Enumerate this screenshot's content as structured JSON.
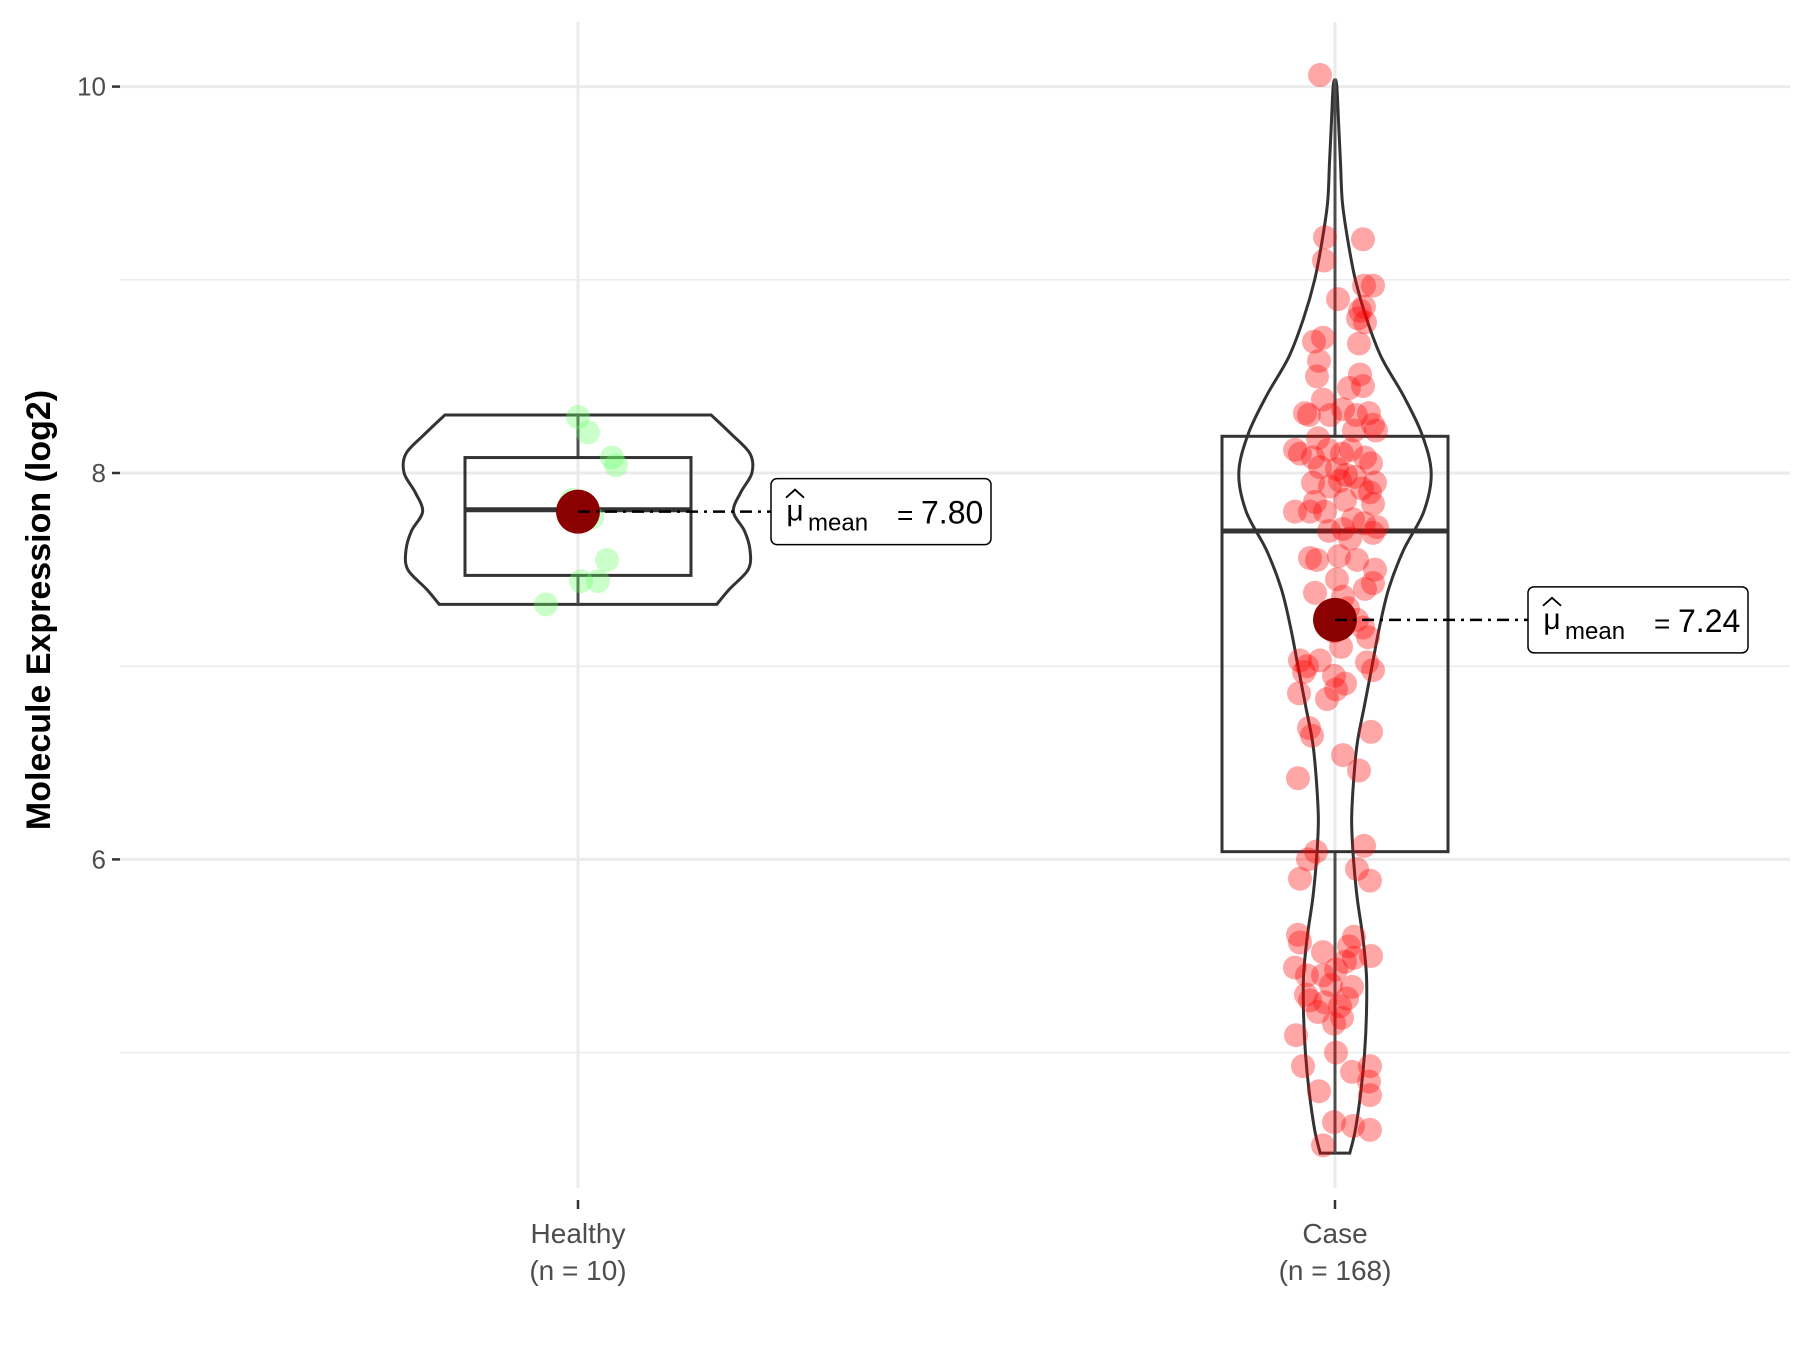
{
  "chart_data": {
    "type": "violin-box-jitter",
    "title": "",
    "xlabel": "",
    "ylabel": "Molecule Expression (log2)",
    "ylim": [
      4.2,
      10.4
    ],
    "yticks": [
      6,
      8,
      10
    ],
    "yticks_minor": [
      5,
      7,
      9
    ],
    "grid": true,
    "categories": [
      {
        "name": "Healthy",
        "n_label": "(n = 10)",
        "color": "#66ff66",
        "mean": 7.8,
        "mean_label": "7.80",
        "box": {
          "q1": 7.47,
          "median": 7.81,
          "q3": 8.08,
          "whisker_low": 7.32,
          "whisker_high": 8.3
        },
        "violin": {
          "min": 7.32,
          "max": 8.3,
          "profile": [
            [
              7.32,
              0.75
            ],
            [
              7.4,
              0.82
            ],
            [
              7.5,
              0.92
            ],
            [
              7.6,
              0.93
            ],
            [
              7.7,
              0.9
            ],
            [
              7.8,
              0.84
            ],
            [
              7.9,
              0.88
            ],
            [
              8.0,
              0.94
            ],
            [
              8.1,
              0.93
            ],
            [
              8.2,
              0.83
            ],
            [
              8.3,
              0.72
            ]
          ]
        },
        "points": [
          {
            "dx": 0.0,
            "y": 8.29
          },
          {
            "dx": 0.1,
            "y": 8.21
          },
          {
            "dx": 0.34,
            "y": 8.08
          },
          {
            "dx": 0.38,
            "y": 8.04
          },
          {
            "dx": -0.06,
            "y": 7.86
          },
          {
            "dx": 0.14,
            "y": 7.77
          },
          {
            "dx": 0.29,
            "y": 7.55
          },
          {
            "dx": 0.2,
            "y": 7.44
          },
          {
            "dx": 0.03,
            "y": 7.44
          },
          {
            "dx": -0.32,
            "y": 7.32
          }
        ]
      },
      {
        "name": "Case",
        "n_label": "(n = 168)",
        "color": "#ff0000",
        "mean": 7.24,
        "mean_label": "7.24",
        "box": {
          "q1": 6.04,
          "median": 7.7,
          "q3": 8.19,
          "whisker_low": 4.48,
          "whisker_high": 10.04
        },
        "violin": {
          "min": 4.48,
          "max": 10.04,
          "profile": [
            [
              4.48,
              0.08
            ],
            [
              4.6,
              0.11
            ],
            [
              4.8,
              0.14
            ],
            [
              5.0,
              0.16
            ],
            [
              5.2,
              0.17
            ],
            [
              5.4,
              0.17
            ],
            [
              5.6,
              0.15
            ],
            [
              5.8,
              0.12
            ],
            [
              6.0,
              0.1
            ],
            [
              6.2,
              0.09
            ],
            [
              6.4,
              0.1
            ],
            [
              6.6,
              0.12
            ],
            [
              6.8,
              0.16
            ],
            [
              7.0,
              0.2
            ],
            [
              7.2,
              0.24
            ],
            [
              7.4,
              0.29
            ],
            [
              7.6,
              0.37
            ],
            [
              7.8,
              0.48
            ],
            [
              8.0,
              0.52
            ],
            [
              8.2,
              0.47
            ],
            [
              8.4,
              0.37
            ],
            [
              8.6,
              0.25
            ],
            [
              8.8,
              0.17
            ],
            [
              9.0,
              0.11
            ],
            [
              9.2,
              0.07
            ],
            [
              9.4,
              0.04
            ],
            [
              9.6,
              0.03
            ],
            [
              9.8,
              0.02
            ],
            [
              10.0,
              0.01
            ],
            [
              10.04,
              0.0
            ]
          ]
        },
        "points": [
          {
            "dx": -0.15,
            "y": 10.06
          },
          {
            "dx": -0.1,
            "y": 9.22
          },
          {
            "dx": -0.11,
            "y": 9.1
          },
          {
            "dx": 0.28,
            "y": 9.21
          },
          {
            "dx": 0.29,
            "y": 8.97
          },
          {
            "dx": 0.38,
            "y": 8.97
          },
          {
            "dx": 0.03,
            "y": 8.9
          },
          {
            "dx": 0.23,
            "y": 8.8
          },
          {
            "dx": 0.25,
            "y": 8.84
          },
          {
            "dx": 0.29,
            "y": 8.86
          },
          {
            "dx": 0.3,
            "y": 8.78
          },
          {
            "dx": -0.21,
            "y": 8.68
          },
          {
            "dx": -0.12,
            "y": 8.7
          },
          {
            "dx": 0.24,
            "y": 8.67
          },
          {
            "dx": -0.16,
            "y": 8.58
          },
          {
            "dx": -0.18,
            "y": 8.5
          },
          {
            "dx": 0.25,
            "y": 8.51
          },
          {
            "dx": 0.28,
            "y": 8.45
          },
          {
            "dx": 0.14,
            "y": 8.44
          },
          {
            "dx": -0.12,
            "y": 8.38
          },
          {
            "dx": -0.3,
            "y": 8.31
          },
          {
            "dx": -0.26,
            "y": 8.3
          },
          {
            "dx": -0.05,
            "y": 8.3
          },
          {
            "dx": 0.08,
            "y": 8.33
          },
          {
            "dx": 0.21,
            "y": 8.3
          },
          {
            "dx": 0.34,
            "y": 8.31
          },
          {
            "dx": 0.38,
            "y": 8.25
          },
          {
            "dx": 0.41,
            "y": 8.22
          },
          {
            "dx": 0.19,
            "y": 8.22
          },
          {
            "dx": -0.17,
            "y": 8.18
          },
          {
            "dx": -0.4,
            "y": 8.12
          },
          {
            "dx": -0.35,
            "y": 8.1
          },
          {
            "dx": -0.22,
            "y": 8.08
          },
          {
            "dx": -0.07,
            "y": 8.12
          },
          {
            "dx": 0.07,
            "y": 8.1
          },
          {
            "dx": 0.16,
            "y": 8.12
          },
          {
            "dx": 0.3,
            "y": 8.08
          },
          {
            "dx": 0.36,
            "y": 8.05
          },
          {
            "dx": -0.15,
            "y": 8.03
          },
          {
            "dx": 0.02,
            "y": 8.02
          },
          {
            "dx": 0.11,
            "y": 7.99
          },
          {
            "dx": 0.2,
            "y": 7.98
          },
          {
            "dx": 0.4,
            "y": 7.95
          },
          {
            "dx": 0.27,
            "y": 7.92
          },
          {
            "dx": -0.05,
            "y": 7.93
          },
          {
            "dx": 0.05,
            "y": 7.96
          },
          {
            "dx": -0.22,
            "y": 7.95
          },
          {
            "dx": 0.35,
            "y": 7.9
          },
          {
            "dx": -0.2,
            "y": 7.85
          },
          {
            "dx": 0.1,
            "y": 7.86
          },
          {
            "dx": 0.38,
            "y": 7.84
          },
          {
            "dx": -0.25,
            "y": 7.8
          },
          {
            "dx": -0.1,
            "y": 7.8
          },
          {
            "dx": -0.4,
            "y": 7.8
          },
          {
            "dx": 0.18,
            "y": 7.76
          },
          {
            "dx": 0.29,
            "y": 7.74
          },
          {
            "dx": 0.42,
            "y": 7.72
          },
          {
            "dx": -0.06,
            "y": 7.7
          },
          {
            "dx": 0.08,
            "y": 7.71
          },
          {
            "dx": 0.38,
            "y": 7.69
          },
          {
            "dx": 0.15,
            "y": 7.66
          },
          {
            "dx": -0.25,
            "y": 7.56
          },
          {
            "dx": -0.18,
            "y": 7.55
          },
          {
            "dx": 0.04,
            "y": 7.57
          },
          {
            "dx": 0.22,
            "y": 7.55
          },
          {
            "dx": 0.4,
            "y": 7.5
          },
          {
            "dx": 0.02,
            "y": 7.45
          },
          {
            "dx": 0.38,
            "y": 7.43
          },
          {
            "dx": 0.3,
            "y": 7.4
          },
          {
            "dx": -0.2,
            "y": 7.38
          },
          {
            "dx": 0.08,
            "y": 7.36
          },
          {
            "dx": 0.13,
            "y": 7.3
          },
          {
            "dx": 0.22,
            "y": 7.24
          },
          {
            "dx": 0.28,
            "y": 7.2
          },
          {
            "dx": -0.01,
            "y": 7.18
          },
          {
            "dx": 0.33,
            "y": 7.15
          },
          {
            "dx": 0.06,
            "y": 7.1
          },
          {
            "dx": -0.35,
            "y": 7.03
          },
          {
            "dx": -0.28,
            "y": 7.0
          },
          {
            "dx": -0.15,
            "y": 7.03
          },
          {
            "dx": 0.32,
            "y": 7.02
          },
          {
            "dx": 0.38,
            "y": 6.98
          },
          {
            "dx": -0.31,
            "y": 6.97
          },
          {
            "dx": -0.01,
            "y": 6.95
          },
          {
            "dx": 0.1,
            "y": 6.91
          },
          {
            "dx": 0.01,
            "y": 6.88
          },
          {
            "dx": -0.36,
            "y": 6.86
          },
          {
            "dx": -0.08,
            "y": 6.83
          },
          {
            "dx": 0.36,
            "y": 6.66
          },
          {
            "dx": -0.23,
            "y": 6.64
          },
          {
            "dx": -0.26,
            "y": 6.68
          },
          {
            "dx": 0.08,
            "y": 6.54
          },
          {
            "dx": 0.24,
            "y": 6.46
          },
          {
            "dx": -0.37,
            "y": 6.42
          },
          {
            "dx": 0.29,
            "y": 6.07
          },
          {
            "dx": -0.19,
            "y": 6.04
          },
          {
            "dx": -0.27,
            "y": 6.0
          },
          {
            "dx": 0.22,
            "y": 5.95
          },
          {
            "dx": -0.35,
            "y": 5.9
          },
          {
            "dx": 0.35,
            "y": 5.89
          },
          {
            "dx": -0.37,
            "y": 5.61
          },
          {
            "dx": -0.35,
            "y": 5.57
          },
          {
            "dx": 0.19,
            "y": 5.6
          },
          {
            "dx": 0.14,
            "y": 5.55
          },
          {
            "dx": -0.12,
            "y": 5.52
          },
          {
            "dx": 0.19,
            "y": 5.49
          },
          {
            "dx": 0.36,
            "y": 5.5
          },
          {
            "dx": -0.4,
            "y": 5.44
          },
          {
            "dx": -0.28,
            "y": 5.4
          },
          {
            "dx": -0.12,
            "y": 5.4
          },
          {
            "dx": 0.01,
            "y": 5.43
          },
          {
            "dx": 0.1,
            "y": 5.47
          },
          {
            "dx": -0.04,
            "y": 5.35
          },
          {
            "dx": 0.17,
            "y": 5.34
          },
          {
            "dx": -0.29,
            "y": 5.3
          },
          {
            "dx": -0.25,
            "y": 5.27
          },
          {
            "dx": -0.1,
            "y": 5.26
          },
          {
            "dx": 0.05,
            "y": 5.24
          },
          {
            "dx": 0.12,
            "y": 5.28
          },
          {
            "dx": -0.17,
            "y": 5.21
          },
          {
            "dx": 0.07,
            "y": 5.18
          },
          {
            "dx": -0.01,
            "y": 5.15
          },
          {
            "dx": -0.39,
            "y": 5.09
          },
          {
            "dx": 0.01,
            "y": 5.0
          },
          {
            "dx": -0.32,
            "y": 4.93
          },
          {
            "dx": 0.35,
            "y": 4.93
          },
          {
            "dx": 0.17,
            "y": 4.9
          },
          {
            "dx": 0.34,
            "y": 4.85
          },
          {
            "dx": -0.16,
            "y": 4.8
          },
          {
            "dx": 0.35,
            "y": 4.78
          },
          {
            "dx": -0.01,
            "y": 4.64
          },
          {
            "dx": 0.18,
            "y": 4.62
          },
          {
            "dx": 0.35,
            "y": 4.6
          },
          {
            "dx": -0.12,
            "y": 4.52
          }
        ]
      }
    ]
  }
}
